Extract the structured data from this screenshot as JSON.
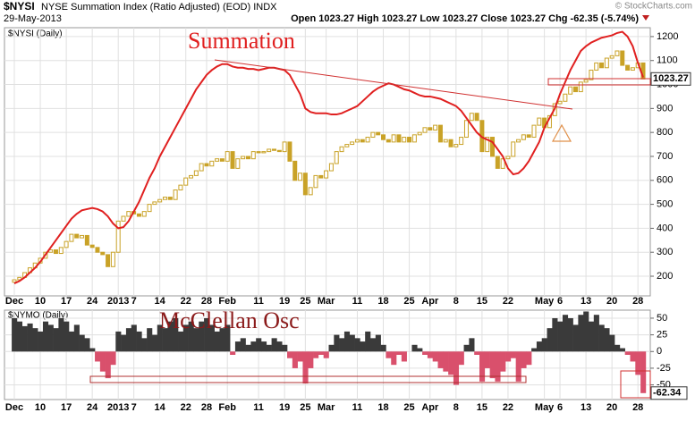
{
  "chart_data": [
    {
      "type": "candlestick",
      "symbol": "$NYSI",
      "name": "NYSE Summation Index (Ratio Adjusted) (EOD) INDX",
      "date": "29-May-2013",
      "quote": "Open 1023.27  High 1023.27  Low 1023.27  Close 1023.27  Chg -62.35 (-5.74%)",
      "copyright": "© StockCharts.com",
      "panel_label": "$NYSI (Daily)",
      "annotation": "Summation",
      "categories": [
        "Dec",
        null,
        null,
        null,
        null,
        "10",
        null,
        null,
        null,
        null,
        "17",
        null,
        null,
        null,
        null,
        "24",
        null,
        null,
        null,
        null,
        "2013",
        null,
        null,
        "7",
        null,
        null,
        null,
        null,
        "14",
        null,
        null,
        null,
        null,
        "22",
        null,
        null,
        null,
        "28",
        null,
        null,
        null,
        "Feb",
        null,
        null,
        null,
        null,
        null,
        "11",
        null,
        null,
        null,
        null,
        "19",
        null,
        null,
        null,
        "25",
        null,
        null,
        null,
        "Mar",
        null,
        null,
        null,
        null,
        null,
        "11",
        null,
        null,
        null,
        null,
        "18",
        null,
        null,
        null,
        null,
        "25",
        null,
        null,
        null,
        "Apr",
        null,
        null,
        null,
        null,
        "8",
        null,
        null,
        null,
        null,
        "15",
        null,
        null,
        null,
        null,
        "22",
        null,
        null,
        null,
        null,
        null,
        null,
        "May",
        null,
        null,
        "6",
        null,
        null,
        null,
        null,
        "13",
        null,
        null,
        null,
        null,
        "20",
        null,
        null,
        null,
        null,
        "28",
        null
      ],
      "open": [
        175,
        185,
        195,
        215,
        235,
        255,
        275,
        300,
        310,
        295,
        320,
        345,
        375,
        360,
        370,
        330,
        320,
        300,
        290,
        240,
        300,
        430,
        450,
        470,
        460,
        450,
        470,
        500,
        510,
        520,
        530,
        520,
        560,
        580,
        610,
        620,
        640,
        670,
        660,
        680,
        690,
        680,
        720,
        650,
        690,
        700,
        690,
        720,
        715,
        720,
        730,
        725,
        720,
        760,
        680,
        600,
        630,
        540,
        570,
        620,
        610,
        640,
        670,
        720,
        740,
        750,
        760,
        770,
        760,
        780,
        800,
        790,
        770,
        760,
        790,
        760,
        780,
        760,
        790,
        800,
        820,
        810,
        830,
        760,
        770,
        740,
        750,
        780,
        850,
        880,
        850,
        720,
        780,
        700,
        650,
        690,
        700,
        760,
        770,
        790,
        780,
        830,
        860,
        820,
        870,
        920,
        930,
        960,
        990,
        970,
        1010,
        1020,
        1060,
        1090,
        1070,
        1110,
        1120,
        1140,
        1080,
        1060,
        1070,
        1090
      ],
      "close": [
        185,
        195,
        215,
        235,
        255,
        275,
        300,
        310,
        295,
        320,
        345,
        375,
        360,
        370,
        330,
        320,
        300,
        290,
        240,
        300,
        430,
        450,
        470,
        460,
        450,
        470,
        500,
        510,
        520,
        530,
        520,
        560,
        580,
        610,
        620,
        640,
        670,
        660,
        680,
        690,
        680,
        720,
        650,
        690,
        700,
        690,
        720,
        715,
        720,
        730,
        725,
        720,
        760,
        680,
        600,
        630,
        540,
        570,
        620,
        610,
        640,
        670,
        720,
        740,
        750,
        760,
        770,
        760,
        780,
        800,
        790,
        770,
        760,
        790,
        760,
        780,
        760,
        790,
        800,
        820,
        810,
        830,
        760,
        770,
        740,
        750,
        780,
        850,
        880,
        850,
        720,
        780,
        700,
        650,
        690,
        700,
        760,
        770,
        790,
        780,
        830,
        860,
        820,
        870,
        920,
        930,
        960,
        990,
        970,
        1010,
        1020,
        1060,
        1090,
        1070,
        1110,
        1120,
        1140,
        1080,
        1060,
        1070,
        1090,
        1023.27
      ],
      "color": "#c9a227",
      "line": {
        "color": "#e02020",
        "values": [
          170,
          180,
          195,
          215,
          235,
          260,
          290,
          320,
          350,
          380,
          410,
          440,
          460,
          475,
          480,
          485,
          480,
          470,
          450,
          420,
          400,
          405,
          430,
          470,
          510,
          560,
          610,
          650,
          700,
          740,
          780,
          820,
          860,
          900,
          940,
          980,
          1010,
          1040,
          1060,
          1075,
          1085,
          1085,
          1075,
          1070,
          1070,
          1065,
          1065,
          1060,
          1065,
          1070,
          1070,
          1065,
          1060,
          1040,
          1000,
          960,
          900,
          885,
          880,
          880,
          880,
          875,
          875,
          880,
          890,
          900,
          910,
          930,
          950,
          970,
          985,
          995,
          1005,
          1000,
          990,
          980,
          975,
          965,
          955,
          950,
          950,
          945,
          940,
          930,
          920,
          910,
          890,
          860,
          830,
          800,
          780,
          770,
          760,
          730,
          700,
          650,
          625,
          630,
          650,
          680,
          720,
          760,
          820,
          860,
          900,
          960,
          1010,
          1060,
          1100,
          1140,
          1160,
          1175,
          1185,
          1195,
          1200,
          1205,
          1215,
          1220,
          1200,
          1160,
          1090,
          1030
        ]
      },
      "ylim": [
        118,
        1237
      ],
      "yticks": [
        200,
        300,
        400,
        500,
        600,
        700,
        800,
        900,
        1000,
        1100,
        1200
      ],
      "grid": true
    },
    {
      "type": "area",
      "panel_label": "$NYMO (Daily)",
      "annotation": "McClellan Osc",
      "values": [
        50,
        45,
        38,
        42,
        35,
        30,
        45,
        40,
        35,
        50,
        45,
        30,
        40,
        25,
        20,
        5,
        -15,
        -30,
        -40,
        -20,
        30,
        25,
        35,
        40,
        30,
        20,
        35,
        25,
        40,
        35,
        45,
        50,
        30,
        40,
        45,
        35,
        45,
        50,
        40,
        30,
        35,
        40,
        -5,
        15,
        20,
        10,
        15,
        20,
        15,
        10,
        20,
        15,
        10,
        -10,
        -25,
        -15,
        -48,
        -25,
        -10,
        -5,
        -10,
        10,
        25,
        20,
        30,
        25,
        20,
        15,
        30,
        20,
        25,
        10,
        -10,
        -20,
        -5,
        -15,
        0,
        10,
        5,
        -5,
        -10,
        -15,
        -25,
        -30,
        -35,
        -50,
        -20,
        10,
        20,
        -5,
        -45,
        -25,
        -40,
        -45,
        -30,
        -15,
        -10,
        -45,
        -25,
        -20,
        5,
        15,
        20,
        35,
        50,
        45,
        55,
        50,
        40,
        55,
        60,
        45,
        55,
        40,
        35,
        25,
        10,
        5,
        -5,
        -15,
        -35,
        -62.34
      ],
      "positive_color": "#3a3a3a",
      "negative_color": "#d9506c",
      "ylim": [
        -72,
        62
      ],
      "yticks": [
        50,
        25,
        0,
        -25,
        -50
      ],
      "grid": true
    }
  ]
}
